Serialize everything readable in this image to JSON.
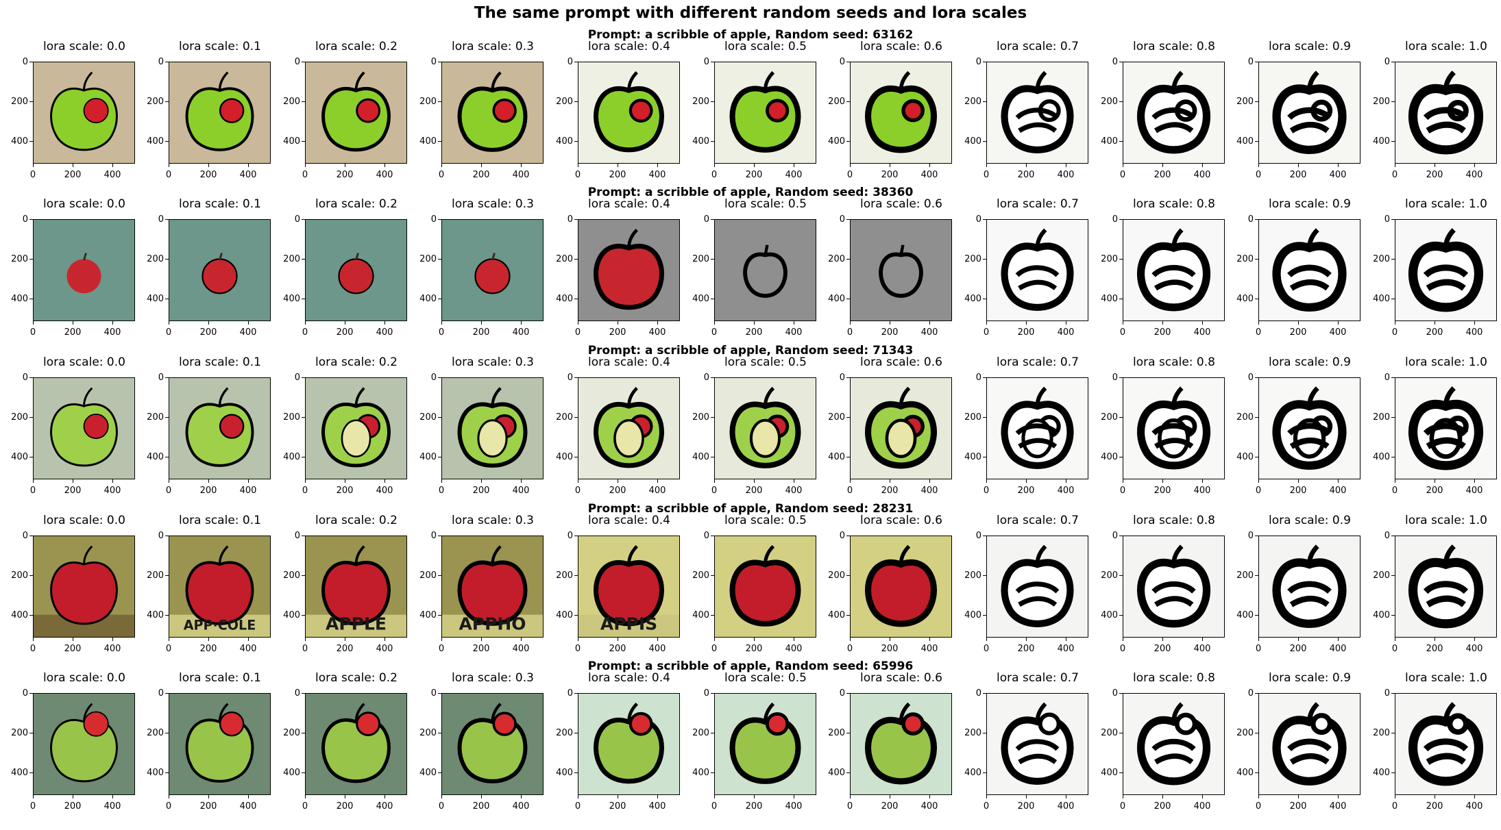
{
  "figure": {
    "suptitle": "The same prompt with different random seeds and lora scales",
    "rows": [
      {
        "title": "Prompt: a scribble of apple, Random seed: 63162",
        "palette": "green-red"
      },
      {
        "title": "Prompt: a scribble of apple, Random seed: 38360",
        "palette": "teal-red"
      },
      {
        "title": "Prompt: a scribble of apple, Random seed: 71343",
        "palette": "green-red2"
      },
      {
        "title": "Prompt: a scribble of apple, Random seed: 28231",
        "palette": "yellow-red"
      },
      {
        "title": "Prompt: a scribble of apple, Random seed: 65996",
        "palette": "green-gray"
      }
    ],
    "columns": [
      {
        "title": "lora scale: 0.0"
      },
      {
        "title": "lora scale: 0.1"
      },
      {
        "title": "lora scale: 0.2"
      },
      {
        "title": "lora scale: 0.3"
      },
      {
        "title": "lora scale: 0.4"
      },
      {
        "title": "lora scale: 0.5"
      },
      {
        "title": "lora scale: 0.6"
      },
      {
        "title": "lora scale: 0.7"
      },
      {
        "title": "lora scale: 0.8"
      },
      {
        "title": "lora scale: 0.9"
      },
      {
        "title": "lora scale: 1.0"
      }
    ],
    "ytick_labels": [
      "0",
      "200",
      "400"
    ],
    "xtick_labels": [
      "0",
      "200",
      "400"
    ],
    "row4_text": [
      "APP·COLE",
      "APPLE",
      "APPHO",
      "APPIS"
    ]
  }
}
